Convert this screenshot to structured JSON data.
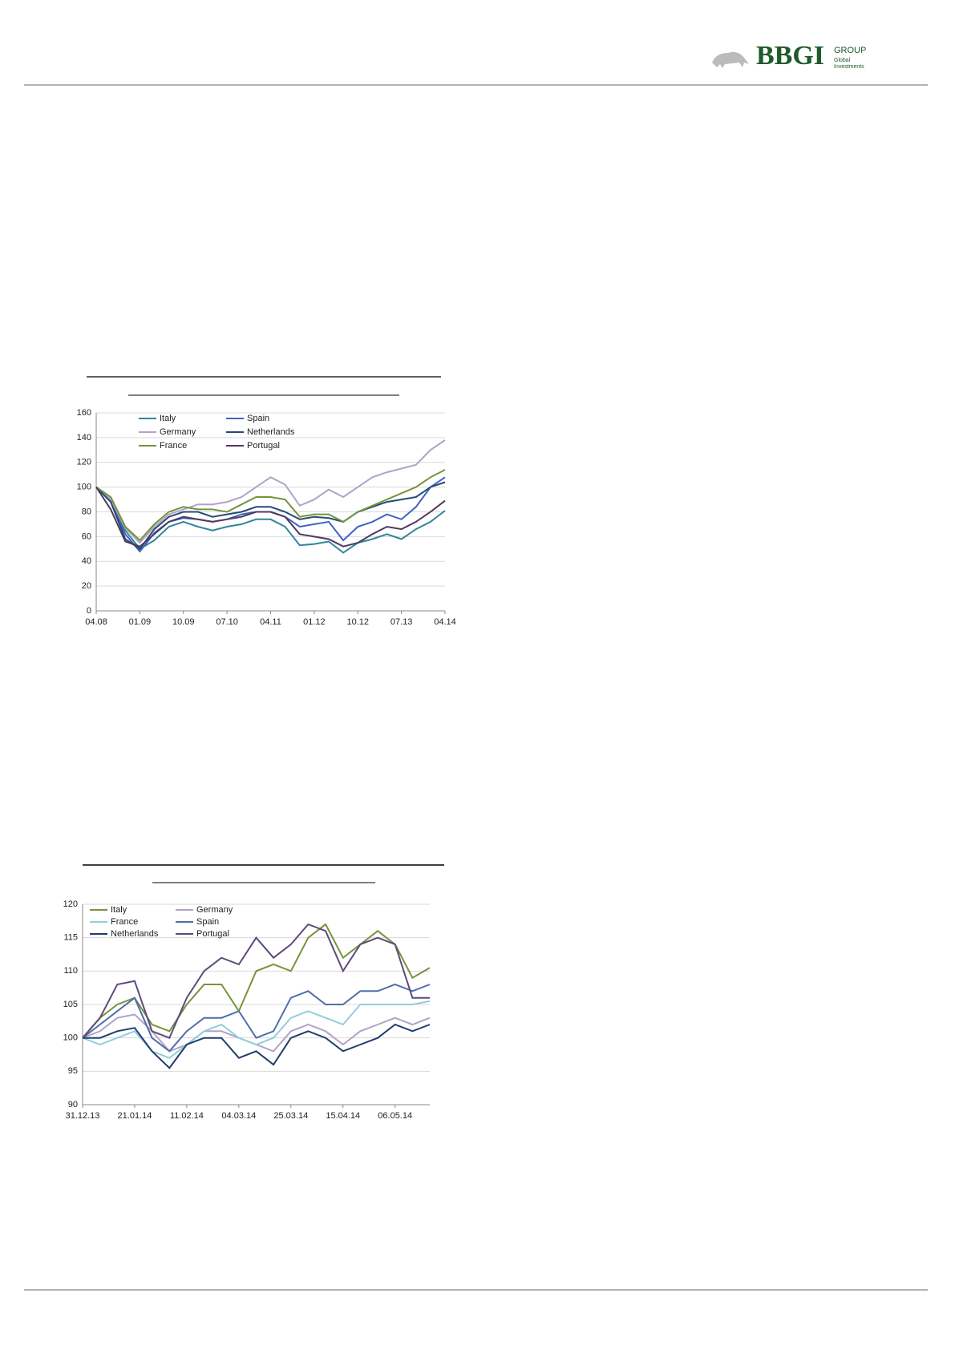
{
  "header": {
    "logo": "BBGI",
    "group": "GROUP",
    "tagline_1": "Global",
    "tagline_2": "Investments"
  },
  "chart_data": [
    {
      "type": "line",
      "categories": [
        "04.08",
        null,
        null,
        "01.09",
        null,
        null,
        "10.09",
        null,
        null,
        "07.10",
        null,
        null,
        "04.11",
        null,
        null,
        "01.12",
        null,
        null,
        "10.12",
        null,
        null,
        "07.13",
        null,
        null,
        "04.14"
      ],
      "series": [
        {
          "name": "Italy",
          "color": "#31859c",
          "values": [
            100,
            88,
            65,
            50,
            57,
            68,
            72,
            68,
            65,
            68,
            70,
            74,
            74,
            68,
            53,
            54,
            56,
            47,
            55,
            58,
            62,
            58,
            66,
            72,
            81
          ]
        },
        {
          "name": "Spain",
          "color": "#3f63c0",
          "values": [
            100,
            88,
            62,
            48,
            63,
            72,
            75,
            74,
            72,
            74,
            78,
            80,
            80,
            76,
            68,
            70,
            72,
            57,
            68,
            72,
            78,
            74,
            84,
            100,
            108
          ]
        },
        {
          "name": "Germany",
          "color": "#b3a2c7",
          "values": [
            100,
            90,
            67,
            55,
            68,
            78,
            82,
            86,
            86,
            88,
            92,
            100,
            108,
            102,
            85,
            90,
            98,
            92,
            100,
            108,
            112,
            115,
            118,
            130,
            138
          ]
        },
        {
          "name": "Netherlands",
          "color": "#254a7a",
          "values": [
            100,
            88,
            58,
            50,
            66,
            76,
            80,
            80,
            76,
            78,
            80,
            84,
            84,
            80,
            74,
            76,
            75,
            72,
            80,
            84,
            88,
            90,
            92,
            100,
            104
          ]
        },
        {
          "name": "France",
          "color": "#77933c",
          "values": [
            100,
            92,
            68,
            57,
            70,
            80,
            84,
            82,
            82,
            80,
            86,
            92,
            92,
            90,
            76,
            78,
            78,
            72,
            80,
            85,
            90,
            95,
            100,
            108,
            114
          ]
        },
        {
          "name": "Portugal",
          "color": "#4f3a5f",
          "values": [
            100,
            82,
            56,
            52,
            62,
            72,
            76,
            74,
            72,
            74,
            76,
            80,
            80,
            76,
            62,
            60,
            58,
            52,
            55,
            62,
            68,
            66,
            72,
            80,
            89
          ]
        }
      ],
      "ylim": [
        0,
        160
      ],
      "yticks": [
        0,
        20,
        40,
        60,
        80,
        100,
        120,
        140,
        160
      ],
      "grid": true
    },
    {
      "type": "line",
      "categories": [
        "31.12.13",
        null,
        null,
        "21.01.14",
        null,
        null,
        "11.02.14",
        null,
        null,
        "04.03.14",
        null,
        null,
        "25.03.14",
        null,
        null,
        "15.04.14",
        null,
        null,
        "06.05.14",
        null,
        null
      ],
      "series": [
        {
          "name": "Italy",
          "color": "#77933c",
          "values": [
            100,
            103,
            105,
            106,
            102,
            101,
            105,
            108,
            108,
            104,
            110,
            111,
            110,
            115,
            117,
            112,
            114,
            116,
            114,
            109,
            110.5
          ]
        },
        {
          "name": "Germany",
          "color": "#b3a2c7",
          "values": [
            100,
            101,
            103,
            103.5,
            101,
            98,
            99,
            101,
            101,
            100,
            99,
            98,
            101,
            102,
            101,
            99,
            101,
            102,
            103,
            102,
            103
          ]
        },
        {
          "name": "France",
          "color": "#93cddd",
          "values": [
            100,
            99,
            100,
            101,
            98,
            97,
            99,
            101,
            102,
            100,
            99,
            100,
            103,
            104,
            103,
            102,
            105,
            105,
            105,
            105,
            105.5
          ]
        },
        {
          "name": "Spain",
          "color": "#4f6fa8",
          "values": [
            100,
            102,
            104,
            106,
            100,
            98,
            101,
            103,
            103,
            104,
            100,
            101,
            106,
            107,
            105,
            105,
            107,
            107,
            108,
            107,
            108
          ]
        },
        {
          "name": "Netherlands",
          "color": "#1f3d6e",
          "values": [
            100,
            100,
            101,
            101.5,
            98,
            95.5,
            99,
            100,
            100,
            97,
            98,
            96,
            100,
            101,
            100,
            98,
            99,
            100,
            102,
            101,
            102
          ]
        },
        {
          "name": "Portugal",
          "color": "#5f4a7a",
          "values": [
            100,
            103,
            108,
            108.5,
            101,
            100,
            106,
            110,
            112,
            111,
            115,
            112,
            114,
            117,
            116,
            110,
            114,
            115,
            114,
            106,
            106
          ]
        }
      ],
      "ylim": [
        90,
        120
      ],
      "yticks": [
        90,
        95,
        100,
        105,
        110,
        115,
        120
      ],
      "grid": true
    }
  ]
}
